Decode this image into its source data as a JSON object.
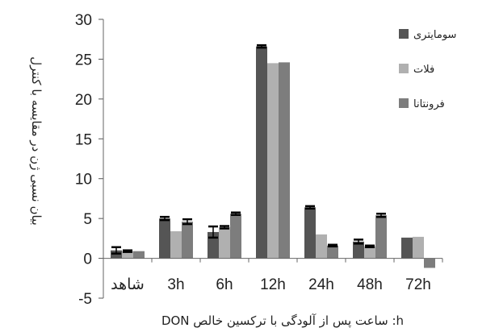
{
  "chart_data": {
    "type": "bar",
    "title": "",
    "ylabel": "بیان نسبی ژن در مقایسه با کنترل",
    "xlabel": "h: ساعت پس از آلودگی با ترکسین خالص DON",
    "categories": [
      "شاهد",
      "3h",
      "6h",
      "12h",
      "24h",
      "48h",
      "72h"
    ],
    "ylim": [
      -5,
      30
    ],
    "yticks": [
      -5,
      0,
      5,
      10,
      15,
      20,
      25,
      30
    ],
    "grid": false,
    "legend_position": "top-right",
    "series": [
      {
        "name": "سومایتری",
        "color": "#555555",
        "values": [
          1.0,
          5.0,
          3.3,
          26.6,
          6.4,
          2.1,
          2.6
        ],
        "errors": [
          0.4,
          0.2,
          0.7,
          0.15,
          0.15,
          0.25,
          0
        ]
      },
      {
        "name": "فلات",
        "color": "#b0b0b0",
        "values": [
          0.9,
          3.4,
          3.9,
          24.5,
          3.0,
          1.5,
          2.7
        ],
        "errors": [
          0.1,
          0,
          0.15,
          0,
          0,
          0.1,
          0
        ]
      },
      {
        "name": "فرونتانا",
        "color": "#7d7d7d",
        "values": [
          0.9,
          4.6,
          5.6,
          24.6,
          1.6,
          5.4,
          -1.2
        ],
        "errors": [
          0,
          0.3,
          0.15,
          0,
          0.1,
          0.2,
          0
        ]
      }
    ]
  }
}
